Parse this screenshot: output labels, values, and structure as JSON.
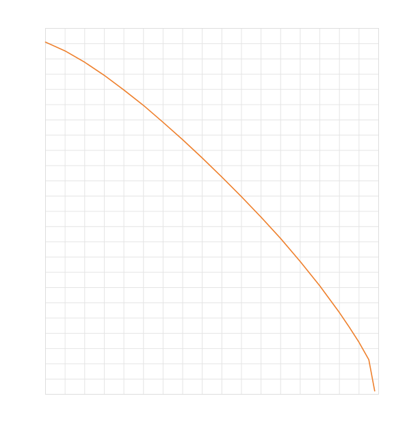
{
  "chart_data": {
    "type": "line",
    "xlim": [
      0,
      17
    ],
    "ylim": [
      0,
      24
    ],
    "grid": true,
    "series": [
      {
        "color": "#ee7f2b",
        "x": [
          0,
          1,
          2,
          3,
          4,
          5,
          6,
          7,
          8,
          9,
          10,
          11,
          12,
          13,
          14,
          15,
          15.5,
          16,
          16.5,
          16.8
        ],
        "y": [
          23.1,
          22.52,
          21.78,
          20.92,
          19.96,
          18.95,
          17.84,
          16.7,
          15.5,
          14.25,
          12.96,
          11.62,
          10.22,
          8.71,
          7.11,
          5.36,
          4.41,
          3.41,
          2.27,
          0.22
        ]
      }
    ]
  }
}
